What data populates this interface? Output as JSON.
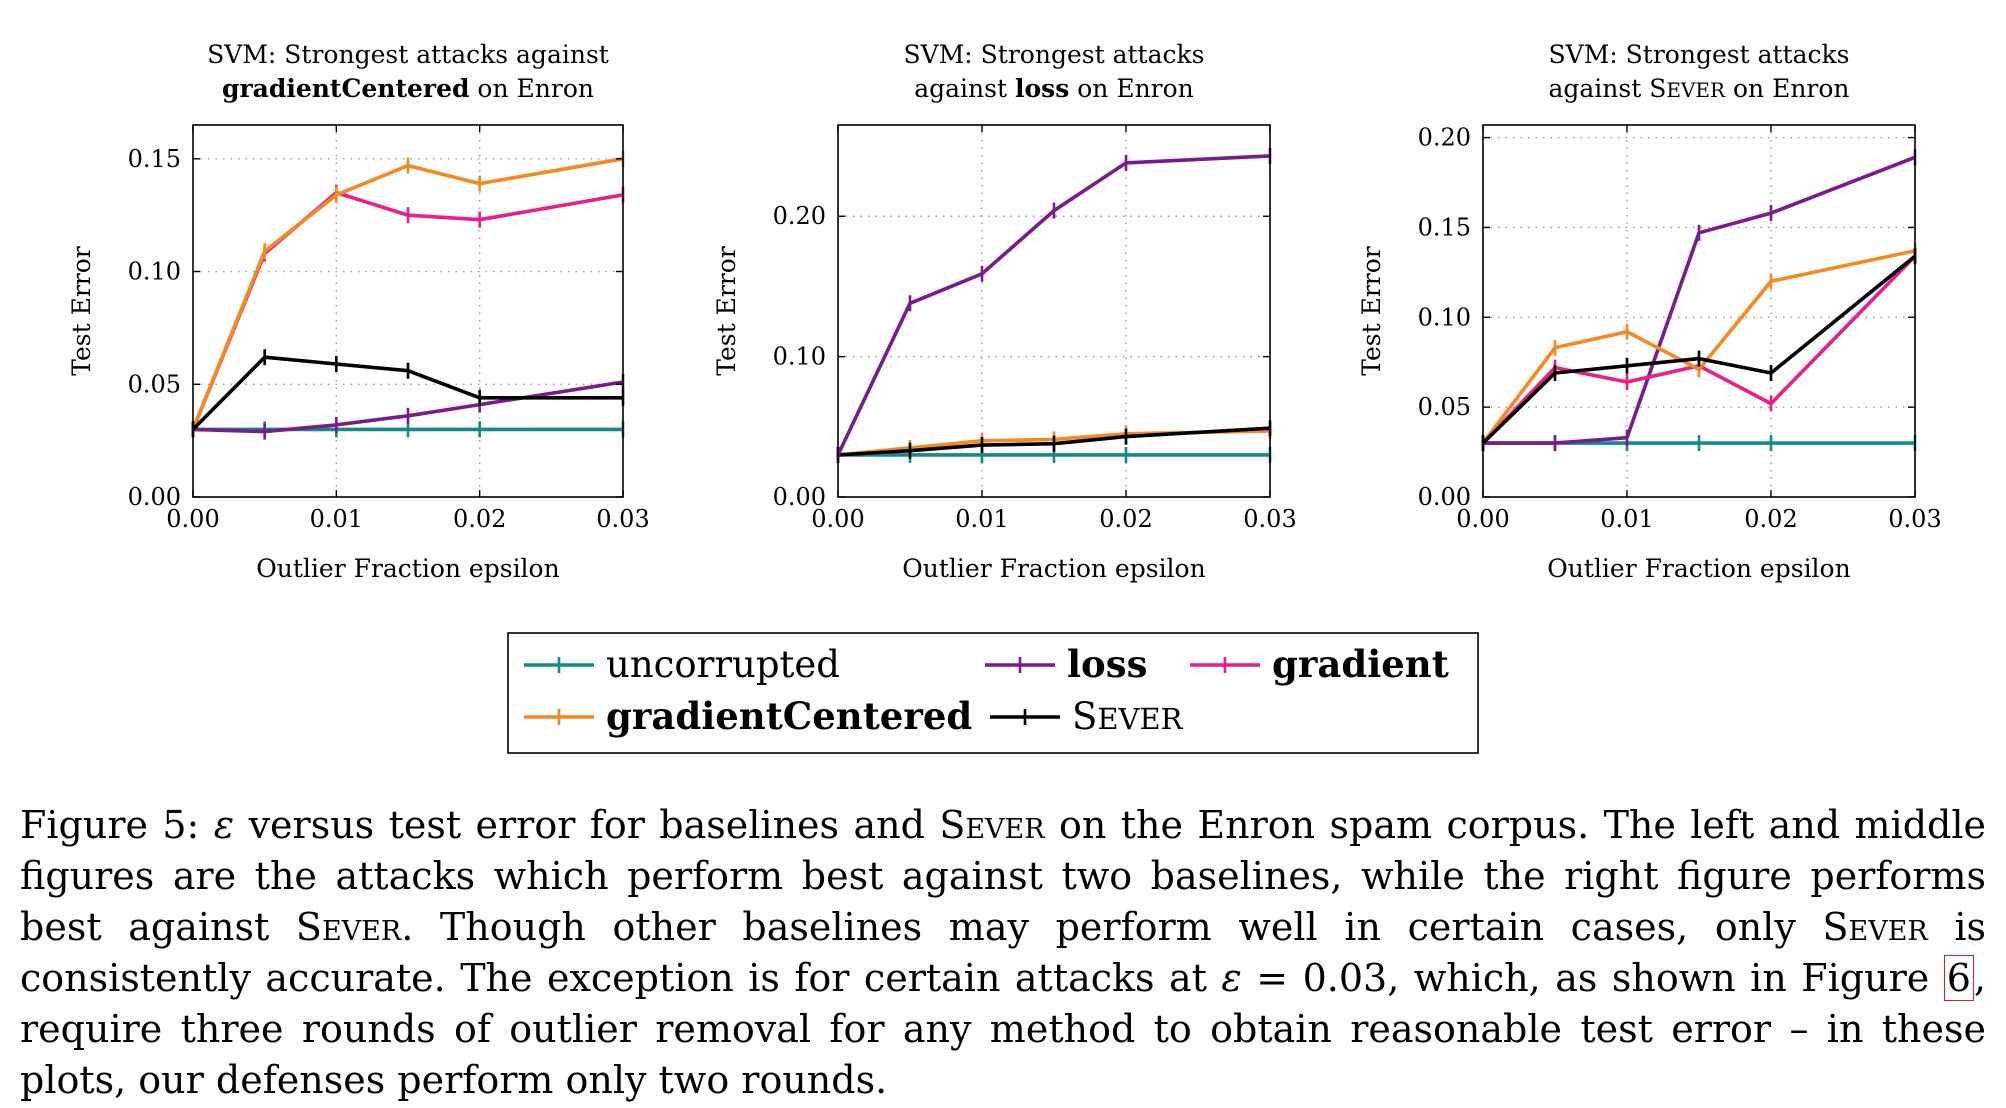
{
  "colors": {
    "uncorrupted": "#138a8a",
    "loss": "#7b1a8c",
    "gradient": "#ec1c8c",
    "gradientCentered": "#f7881f",
    "sever": "#000000",
    "grid": "#9a9a9a"
  },
  "legend": {
    "items": [
      {
        "key": "uncorrupted",
        "label": "uncorrupted",
        "bold": false,
        "smallcaps": false
      },
      {
        "key": "loss",
        "label": "loss",
        "bold": true,
        "smallcaps": false
      },
      {
        "key": "gradient",
        "label": "gradient",
        "bold": true,
        "smallcaps": false
      },
      {
        "key": "gradientCentered",
        "label": "gradientCentered",
        "bold": true,
        "smallcaps": false
      },
      {
        "key": "sever",
        "label": "Sever",
        "bold": false,
        "smallcaps": true
      }
    ]
  },
  "chart_data": [
    {
      "type": "line",
      "title_lines": [
        [
          {
            "t": "SVM: Strongest attacks against",
            "b": false
          }
        ],
        [
          {
            "t": "gradientCentered",
            "b": true
          },
          {
            "t": " on Enron",
            "b": false
          }
        ]
      ],
      "xlabel": "Outlier Fraction epsilon",
      "ylabel": "Test Error",
      "xlim": [
        0,
        0.03
      ],
      "ylim": [
        0,
        0.165
      ],
      "xticks": [
        0,
        0.01,
        0.02,
        0.03
      ],
      "xtick_labels": [
        "0.00",
        "0.01",
        "0.02",
        "0.03"
      ],
      "yticks": [
        0,
        0.05,
        0.1,
        0.15
      ],
      "ytick_labels": [
        "0.00",
        "0.05",
        "0.10",
        "0.15"
      ],
      "grid": true,
      "x": [
        0,
        0.005,
        0.01,
        0.015,
        0.02,
        0.03
      ],
      "series": [
        {
          "key": "uncorrupted",
          "name": "uncorrupted",
          "values": [
            0.03,
            0.03,
            0.03,
            0.03,
            0.03,
            0.03
          ]
        },
        {
          "key": "loss",
          "name": "loss",
          "values": [
            0.03,
            0.029,
            0.032,
            0.036,
            0.041,
            0.051
          ]
        },
        {
          "key": "gradient",
          "name": "gradient",
          "values": [
            0.03,
            0.108,
            0.135,
            0.125,
            0.123,
            0.134
          ]
        },
        {
          "key": "gradientCentered",
          "name": "gradientCentered",
          "values": [
            0.03,
            0.109,
            0.134,
            0.147,
            0.139,
            0.15
          ]
        },
        {
          "key": "sever",
          "name": "Sever",
          "values": [
            0.03,
            0.062,
            0.059,
            0.056,
            0.044,
            0.044
          ]
        }
      ]
    },
    {
      "type": "line",
      "title_lines": [
        [
          {
            "t": "SVM: Strongest attacks",
            "b": false
          }
        ],
        [
          {
            "t": "against ",
            "b": false
          },
          {
            "t": "loss",
            "b": true
          },
          {
            "t": " on Enron",
            "b": false
          }
        ]
      ],
      "xlabel": "Outlier Fraction epsilon",
      "ylabel": "Test Error",
      "xlim": [
        0,
        0.03
      ],
      "ylim": [
        0,
        0.265
      ],
      "xticks": [
        0,
        0.01,
        0.02,
        0.03
      ],
      "xtick_labels": [
        "0.00",
        "0.01",
        "0.02",
        "0.03"
      ],
      "yticks": [
        0,
        0.1,
        0.2
      ],
      "ytick_labels": [
        "0.00",
        "0.10",
        "0.20"
      ],
      "grid": true,
      "x": [
        0,
        0.005,
        0.01,
        0.015,
        0.02,
        0.03
      ],
      "series": [
        {
          "key": "uncorrupted",
          "name": "uncorrupted",
          "values": [
            0.03,
            0.03,
            0.03,
            0.03,
            0.03,
            0.03
          ]
        },
        {
          "key": "gradientCentered",
          "name": "gradientCentered",
          "values": [
            0.03,
            0.035,
            0.04,
            0.041,
            0.045,
            0.047
          ]
        },
        {
          "key": "sever",
          "name": "Sever",
          "values": [
            0.03,
            0.033,
            0.037,
            0.038,
            0.043,
            0.049
          ]
        },
        {
          "key": "loss",
          "name": "loss",
          "values": [
            0.03,
            0.138,
            0.159,
            0.204,
            0.238,
            0.243
          ]
        }
      ]
    },
    {
      "type": "line",
      "title_lines": [
        [
          {
            "t": "SVM: Strongest attacks",
            "b": false
          }
        ],
        [
          {
            "t": "against ",
            "b": false
          },
          {
            "t": "Sever",
            "b": false,
            "sc": true
          },
          {
            "t": " on Enron",
            "b": false
          }
        ]
      ],
      "xlabel": "Outlier Fraction epsilon",
      "ylabel": "Test Error",
      "xlim": [
        0,
        0.03
      ],
      "ylim": [
        0,
        0.207
      ],
      "xticks": [
        0,
        0.01,
        0.02,
        0.03
      ],
      "xtick_labels": [
        "0.00",
        "0.01",
        "0.02",
        "0.03"
      ],
      "yticks": [
        0,
        0.05,
        0.1,
        0.15,
        0.2
      ],
      "ytick_labels": [
        "0.00",
        "0.05",
        "0.10",
        "0.15",
        "0.20"
      ],
      "grid": true,
      "x": [
        0,
        0.005,
        0.01,
        0.015,
        0.02,
        0.03
      ],
      "series": [
        {
          "key": "uncorrupted",
          "name": "uncorrupted",
          "values": [
            0.03,
            0.03,
            0.03,
            0.03,
            0.03,
            0.03
          ]
        },
        {
          "key": "loss",
          "name": "loss",
          "values": [
            0.03,
            0.03,
            0.033,
            0.147,
            0.158,
            0.189
          ]
        },
        {
          "key": "gradient",
          "name": "gradient",
          "values": [
            0.03,
            0.072,
            0.064,
            0.073,
            0.052,
            0.134
          ]
        },
        {
          "key": "gradientCentered",
          "name": "gradientCentered",
          "values": [
            0.03,
            0.083,
            0.092,
            0.071,
            0.12,
            0.137
          ]
        },
        {
          "key": "sever",
          "name": "Sever",
          "values": [
            0.03,
            0.069,
            0.073,
            0.077,
            0.069,
            0.134
          ]
        }
      ]
    }
  ],
  "caption": {
    "segments": [
      {
        "t": "Figure 5: "
      },
      {
        "t": "ε",
        "i": true
      },
      {
        "t": " versus test error for baselines and "
      },
      {
        "t": "Sever",
        "sc": true
      },
      {
        "t": " on the Enron spam corpus.  The left and middle figures are the attacks which perform best against two baselines, while the right figure performs best against "
      },
      {
        "t": "Sever",
        "sc": true
      },
      {
        "t": ". Though other baselines may perform well in certain cases, only "
      },
      {
        "t": "Sever",
        "sc": true
      },
      {
        "t": " is consistently accurate. The exception is for certain attacks at "
      },
      {
        "t": "ε",
        "i": true
      },
      {
        "t": " = 0.03, which, as shown in Figure "
      },
      {
        "t": "6",
        "ref": true
      },
      {
        "t": ", require three rounds of outlier removal for any method to obtain reasonable test error – in these plots, our defenses perform only two rounds."
      }
    ]
  }
}
